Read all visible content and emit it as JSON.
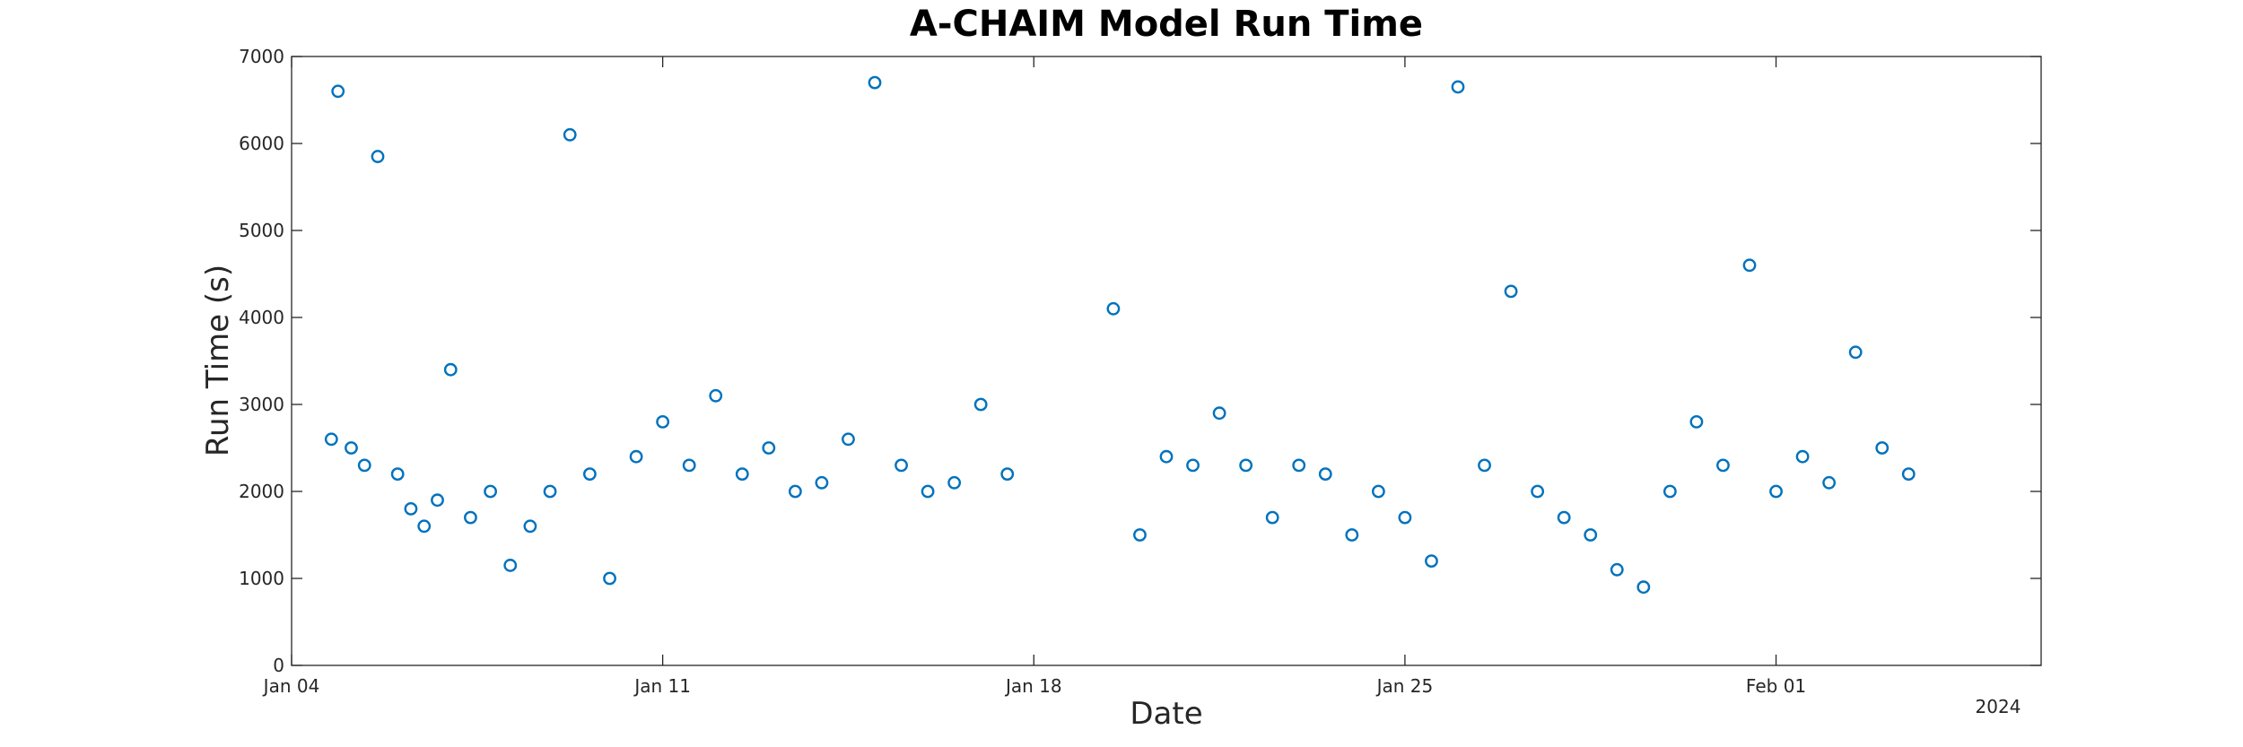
{
  "chart_data": {
    "type": "scatter",
    "title": "A-CHAIM Model Run Time",
    "xlabel": "Date",
    "ylabel": "Run Time (s)",
    "x_tick_labels": [
      "Jan 04",
      "Jan 11",
      "Jan 18",
      "Jan 25",
      "Feb 01"
    ],
    "x_year_label": "2024",
    "xlim": [
      "2024-01-04",
      "2024-02-06"
    ],
    "ylim": [
      0,
      7000
    ],
    "y_ticks": [
      0,
      1000,
      2000,
      3000,
      4000,
      5000,
      6000,
      7000
    ],
    "grid": false,
    "marker": "circle-open",
    "color": "#0072BD",
    "series": [
      {
        "x": [
          "2024-01-04 18:00",
          "2024-01-04 21:00",
          "2024-01-05 03:00",
          "2024-01-05 09:00",
          "2024-01-05 15:00",
          "2024-01-06 00:00",
          "2024-01-06 06:00",
          "2024-01-06 12:00",
          "2024-01-06 18:00",
          "2024-01-07 00:00",
          "2024-01-07 09:00",
          "2024-01-07 18:00",
          "2024-01-08 03:00",
          "2024-01-08 12:00",
          "2024-01-08 21:00",
          "2024-01-09 06:00",
          "2024-01-09 15:00",
          "2024-01-10 00:00",
          "2024-01-10 12:00",
          "2024-01-11 00:00",
          "2024-01-11 12:00",
          "2024-01-12 00:00",
          "2024-01-12 12:00",
          "2024-01-13 00:00",
          "2024-01-13 12:00",
          "2024-01-14 00:00",
          "2024-01-14 12:00",
          "2024-01-15 00:00",
          "2024-01-15 12:00",
          "2024-01-16 00:00",
          "2024-01-16 12:00",
          "2024-01-17 00:00",
          "2024-01-17 12:00",
          "2024-01-19 12:00",
          "2024-01-20 00:00",
          "2024-01-20 12:00",
          "2024-01-21 00:00",
          "2024-01-21 12:00",
          "2024-01-22 00:00",
          "2024-01-22 12:00",
          "2024-01-23 00:00",
          "2024-01-23 12:00",
          "2024-01-24 00:00",
          "2024-01-24 12:00",
          "2024-01-25 00:00",
          "2024-01-25 12:00",
          "2024-01-26 00:00",
          "2024-01-26 12:00",
          "2024-01-27 00:00",
          "2024-01-27 12:00",
          "2024-01-28 00:00",
          "2024-01-28 12:00",
          "2024-01-29 00:00",
          "2024-01-29 12:00",
          "2024-01-30 00:00",
          "2024-01-30 12:00",
          "2024-01-31 00:00",
          "2024-01-31 12:00",
          "2024-02-01 00:00",
          "2024-02-01 12:00",
          "2024-02-02 00:00",
          "2024-02-02 12:00",
          "2024-02-03 00:00",
          "2024-02-03 12:00"
        ],
        "y": [
          2600,
          6600,
          2500,
          2300,
          5850,
          2200,
          1800,
          1600,
          1900,
          3400,
          1700,
          2000,
          1150,
          1600,
          2000,
          6100,
          2200,
          1000,
          2400,
          2800,
          2300,
          3100,
          2200,
          2500,
          2000,
          2100,
          2600,
          6700,
          2300,
          2000,
          2100,
          3000,
          2200,
          4100,
          1500,
          2400,
          2300,
          2900,
          2300,
          1700,
          2300,
          2200,
          1500,
          2000,
          1700,
          1200,
          6650,
          2300,
          4300,
          2000,
          1700,
          1500,
          1100,
          900,
          2000,
          2800,
          2300,
          4600,
          2000,
          2400,
          2100,
          3600,
          2500,
          2200
        ]
      }
    ]
  }
}
